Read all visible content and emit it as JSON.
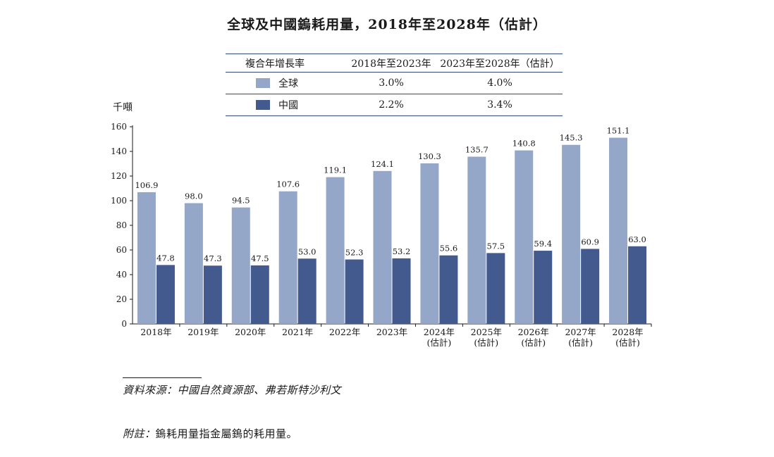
{
  "title": "全球及中國鎢耗用量，2018年至2028年（估計）",
  "cagr_table": {
    "header": [
      "複合年增長率",
      "2018年至2023年",
      "2023年至2028年（估計）"
    ],
    "rows": [
      {
        "label": "全球",
        "color": "#95a7c9",
        "v1": "3.0%",
        "v2": "4.0%"
      },
      {
        "label": "中國",
        "color": "#435a8e",
        "v1": "2.2%",
        "v2": "3.4%"
      }
    ]
  },
  "unit_label": "千噸",
  "chart_data": {
    "type": "bar",
    "categories": [
      [
        "2018年"
      ],
      [
        "2019年"
      ],
      [
        "2020年"
      ],
      [
        "2021年"
      ],
      [
        "2022年"
      ],
      [
        "2023年"
      ],
      [
        "2024年",
        "(估計)"
      ],
      [
        "2025年",
        "(估計)"
      ],
      [
        "2026年",
        "(估計)"
      ],
      [
        "2027年",
        "(估計)"
      ],
      [
        "2028年",
        "(估計)"
      ]
    ],
    "series": [
      {
        "name": "全球",
        "color": "#95a7c9",
        "values": [
          106.9,
          98.0,
          94.5,
          107.6,
          119.1,
          124.1,
          130.3,
          135.7,
          140.8,
          145.3,
          151.1
        ],
        "labels": [
          "106.9",
          "98.0",
          "94.5",
          "107.6",
          "119.1",
          "124.1",
          "130.3",
          "135.7",
          "140.8",
          "145.3",
          "151.1"
        ]
      },
      {
        "name": "中國",
        "color": "#435a8e",
        "values": [
          47.8,
          47.3,
          47.5,
          53.0,
          52.3,
          53.2,
          55.6,
          57.5,
          59.4,
          60.9,
          63.0
        ],
        "labels": [
          "47.8",
          "47.3",
          "47.5",
          "53.0",
          "52.3",
          "53.2",
          "55.6",
          "57.5",
          "59.4",
          "60.9",
          "63.0"
        ]
      }
    ],
    "ylim": [
      0,
      160
    ],
    "yticks": [
      0,
      20,
      40,
      60,
      80,
      100,
      120,
      140,
      160
    ],
    "ylabel": "千噸"
  },
  "source": "資料來源：中國自然資源部、弗若斯特沙利文",
  "note_label": "附註：",
  "note_text": "鎢耗用量指金屬鎢的耗用量。"
}
